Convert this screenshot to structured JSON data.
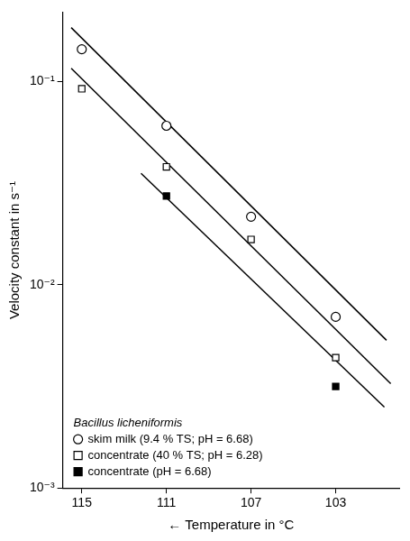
{
  "chart_data": {
    "type": "scatter",
    "x_label": "← Temperature in °C",
    "y_label": "Velocity constant in s⁻¹",
    "log": "y",
    "grid": false,
    "legend": "lower left",
    "legend_title": "Bacillus licheniformis",
    "xlim": [
      115.9,
      100.0
    ],
    "xticks": [
      115,
      111,
      107,
      103
    ],
    "ylim": [
      0.001,
      0.218
    ],
    "yticks": [
      {
        "value": 0.001,
        "label": "10⁻³"
      },
      {
        "value": 0.01,
        "label": "10⁻²"
      },
      {
        "value": 0.1,
        "label": "10⁻¹"
      }
    ],
    "series": [
      {
        "name": "skim milk (9.4 % TS; pH = 6.68)",
        "color": "#000000",
        "marker": "open_circle",
        "x": [
          115,
          111,
          107,
          103
        ],
        "values": [
          0.144,
          0.0605,
          0.0216,
          0.00695
        ],
        "fit_x": [
          115.5,
          100.6
        ],
        "fit_values": [
          0.184,
          0.00533
        ]
      },
      {
        "name": "concentrate (40 % TS; pH = 6.28)",
        "color": "#000000",
        "marker": "open_square",
        "x": [
          115,
          111,
          107,
          103
        ],
        "values": [
          0.092,
          0.038,
          0.0167,
          0.00438
        ],
        "fit_x": [
          115.5,
          100.4
        ],
        "fit_values": [
          0.116,
          0.00326
        ]
      },
      {
        "name": "concentrate (pH = 6.68)",
        "color": "#000000",
        "marker": "filled_square",
        "x": [
          111,
          103
        ],
        "values": [
          0.0273,
          0.00316
        ],
        "fit_x": [
          112.2,
          100.7
        ],
        "fit_values": [
          0.0353,
          0.0025
        ]
      }
    ]
  }
}
